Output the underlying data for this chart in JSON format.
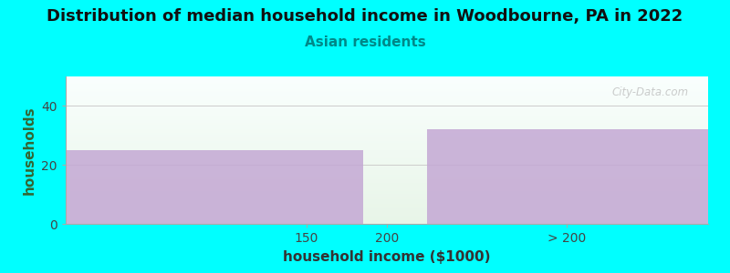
{
  "title": "Distribution of median household income in Woodbourne, PA in 2022",
  "subtitle": "Asian residents",
  "xlabel": "household income ($1000)",
  "ylabel": "households",
  "background_color": "#00FFFF",
  "plot_bg_color_top": "#fafffe",
  "plot_bg_color_bottom": "#e8f5e8",
  "bar_color": "#C4A8D4",
  "watermark": "City-Data.com",
  "segments": [
    {
      "x_start": 0,
      "x_end": 185,
      "height": 25
    },
    {
      "x_start": 185,
      "x_end": 225,
      "height": 0
    },
    {
      "x_start": 225,
      "x_end": 400,
      "height": 32
    }
  ],
  "xtick_positions": [
    150,
    200,
    312
  ],
  "xtick_labels": [
    "150",
    "200",
    "> 200"
  ],
  "xlim": [
    0,
    400
  ],
  "ylim": [
    0,
    50
  ],
  "yticks": [
    0,
    20,
    40
  ],
  "title_fontsize": 13,
  "subtitle_fontsize": 11,
  "subtitle_color": "#008888",
  "axis_label_fontsize": 11,
  "tick_fontsize": 10,
  "ylabel_color": "#336633",
  "xlabel_color": "#333333"
}
